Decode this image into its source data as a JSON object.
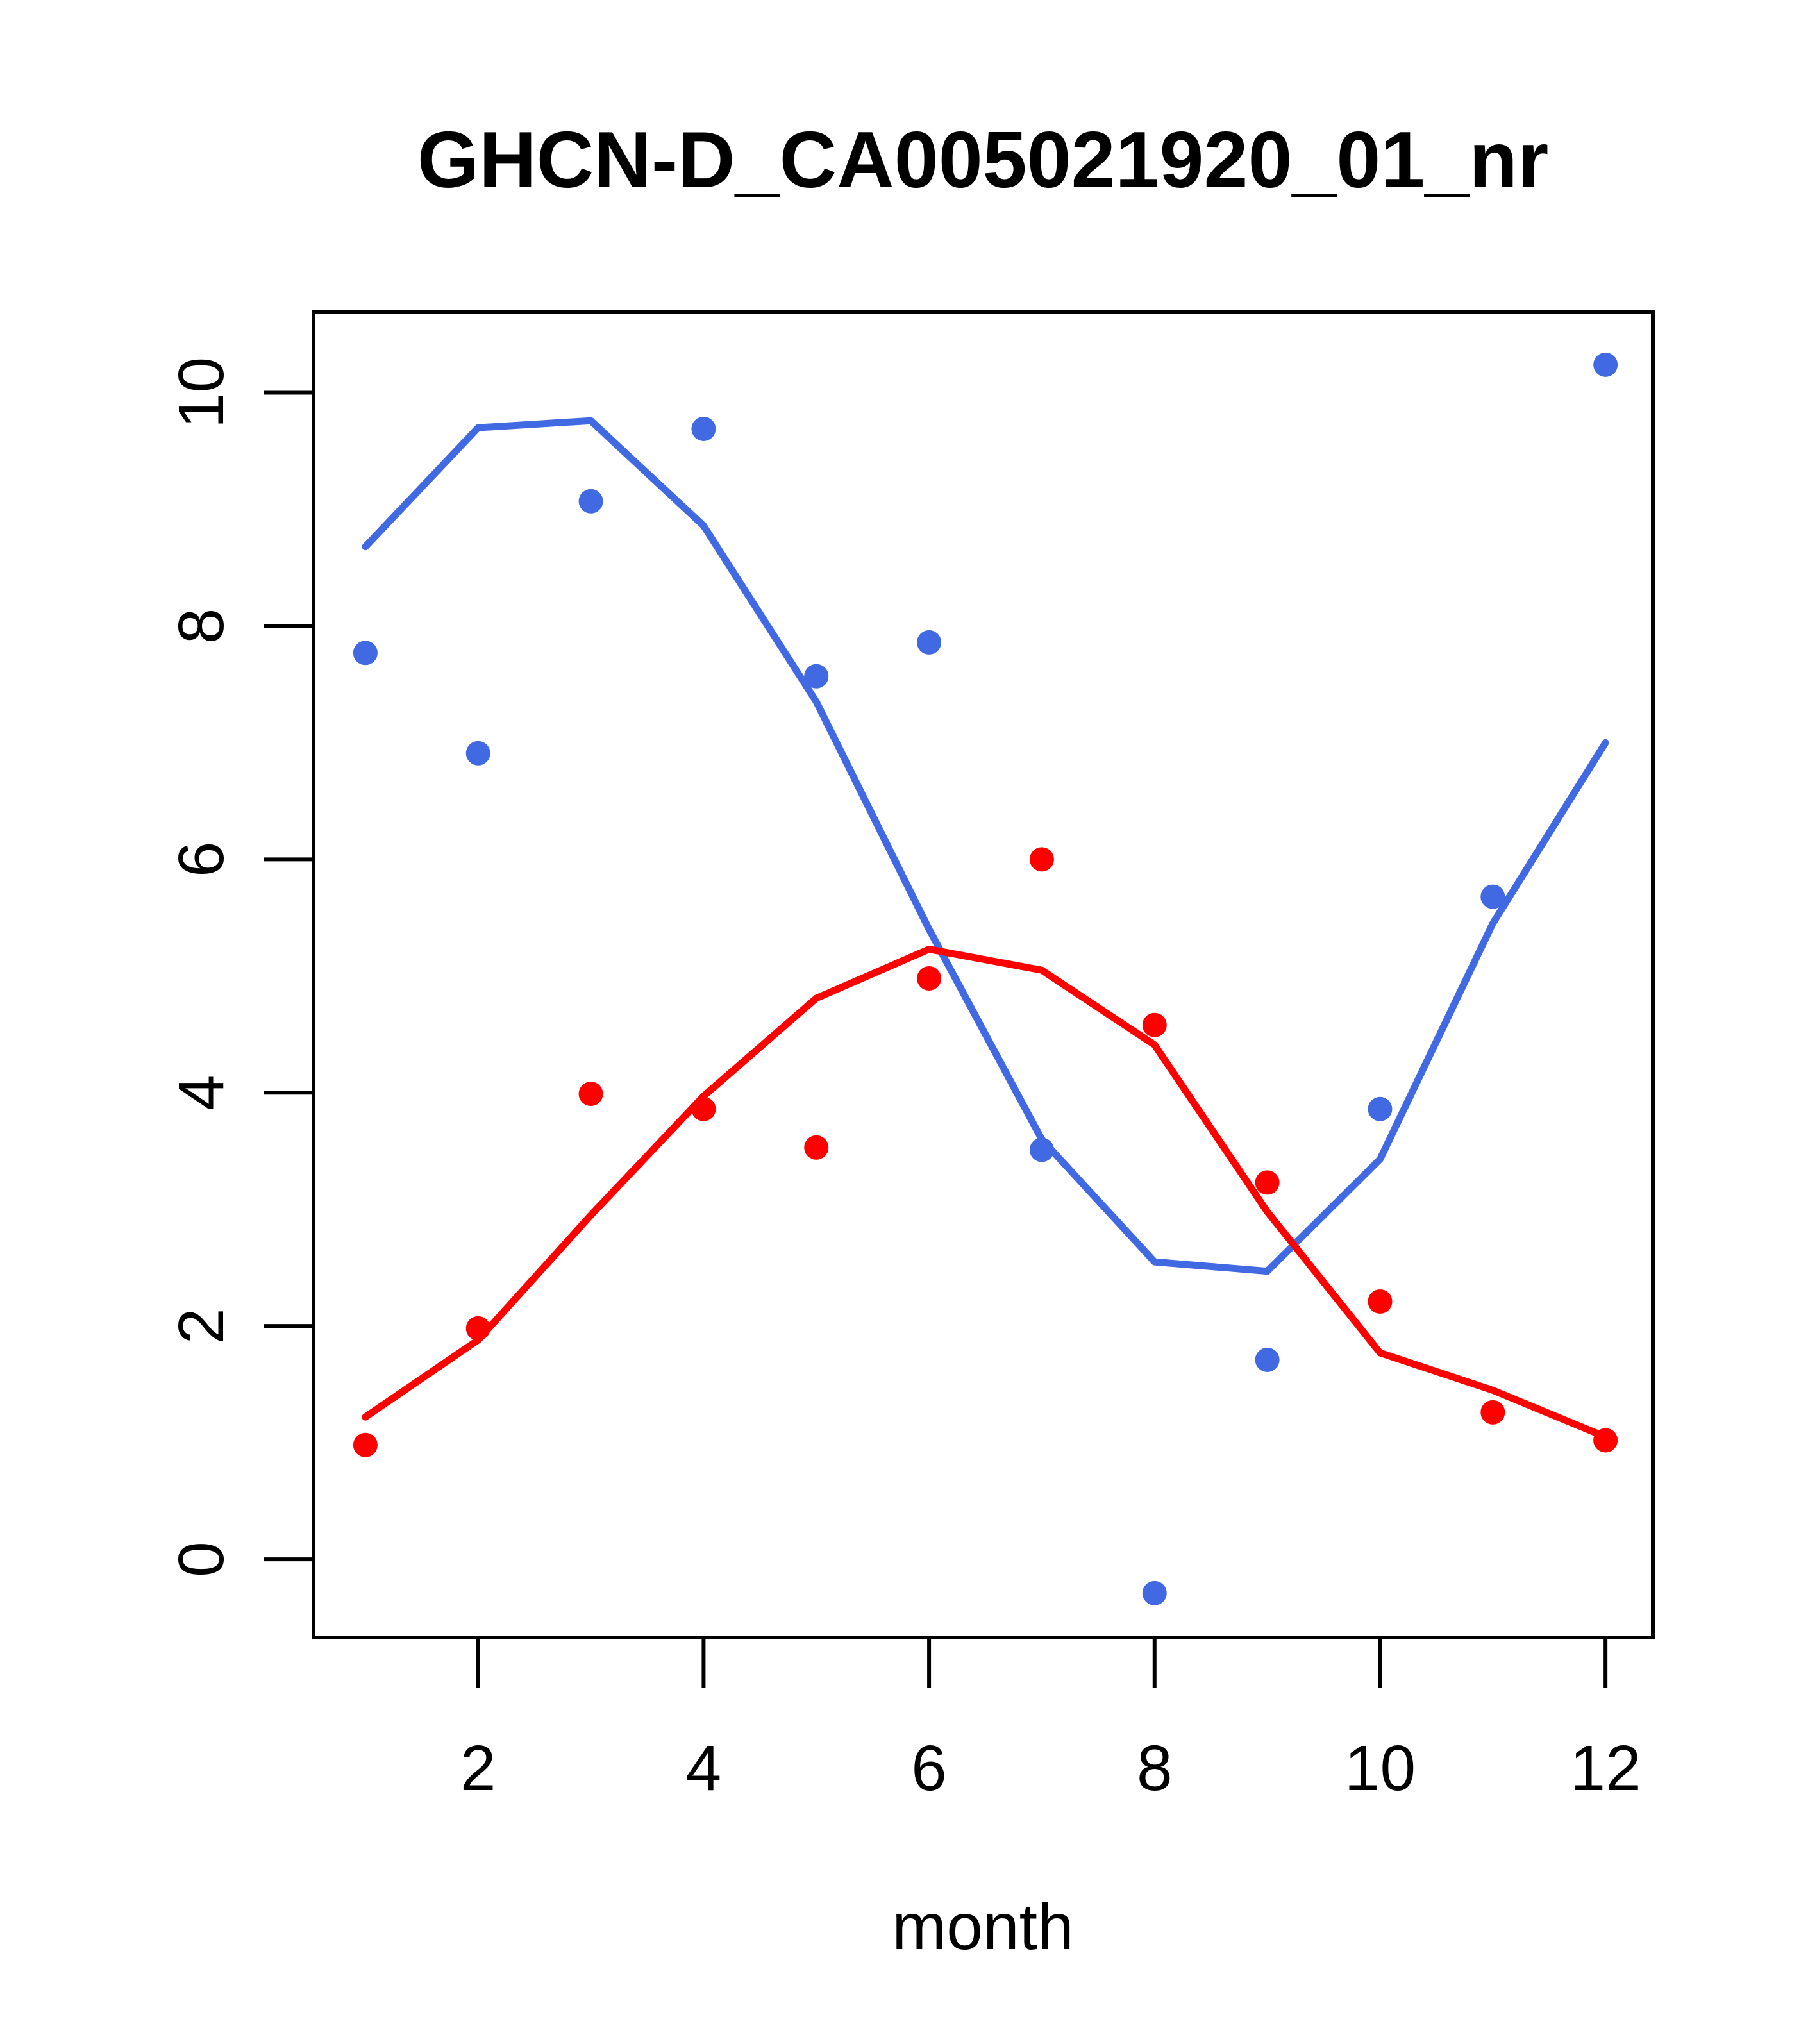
{
  "title": "GHCN-D_CA005021920_01_nr",
  "chart_data": {
    "type": "scatter",
    "title": "GHCN-D_CA005021920_01_nr",
    "xlabel": "month",
    "ylabel": "",
    "xlim": [
      0.54,
      12.42
    ],
    "ylim": [
      -0.67,
      10.69
    ],
    "x_ticks": [
      2,
      4,
      6,
      8,
      10,
      12
    ],
    "y_ticks": [
      0,
      2,
      4,
      6,
      8,
      10
    ],
    "grid": false,
    "legend": "none",
    "x": [
      1,
      2,
      3,
      4,
      5,
      6,
      7,
      8,
      9,
      10,
      11,
      12
    ],
    "series": [
      {
        "name": "blue-points",
        "role": "points",
        "color": "#4169E1",
        "values": [
          7.77,
          6.91,
          9.07,
          9.69,
          7.57,
          7.86,
          3.51,
          -0.29,
          1.71,
          3.86,
          5.68,
          10.24
        ]
      },
      {
        "name": "blue-smooth-line",
        "role": "line",
        "color": "#4169E1",
        "values": [
          8.68,
          9.7,
          9.76,
          8.86,
          7.35,
          5.4,
          3.6,
          2.55,
          2.47,
          3.43,
          5.45,
          7.0
        ]
      },
      {
        "name": "red-points",
        "role": "points",
        "color": "#FF0000",
        "values": [
          0.98,
          1.98,
          3.99,
          3.86,
          3.53,
          4.98,
          6.0,
          4.58,
          3.23,
          2.21,
          1.26,
          1.02
        ]
      },
      {
        "name": "red-smooth-line",
        "role": "line",
        "color": "#FF0000",
        "values": [
          1.22,
          1.88,
          2.95,
          3.97,
          4.81,
          5.23,
          5.05,
          4.41,
          2.98,
          1.77,
          1.45,
          1.05
        ]
      }
    ],
    "colors": {
      "blue": "#4169E1",
      "red": "#FF0000",
      "axis": "#000000",
      "background": "#FFFFFF"
    }
  }
}
